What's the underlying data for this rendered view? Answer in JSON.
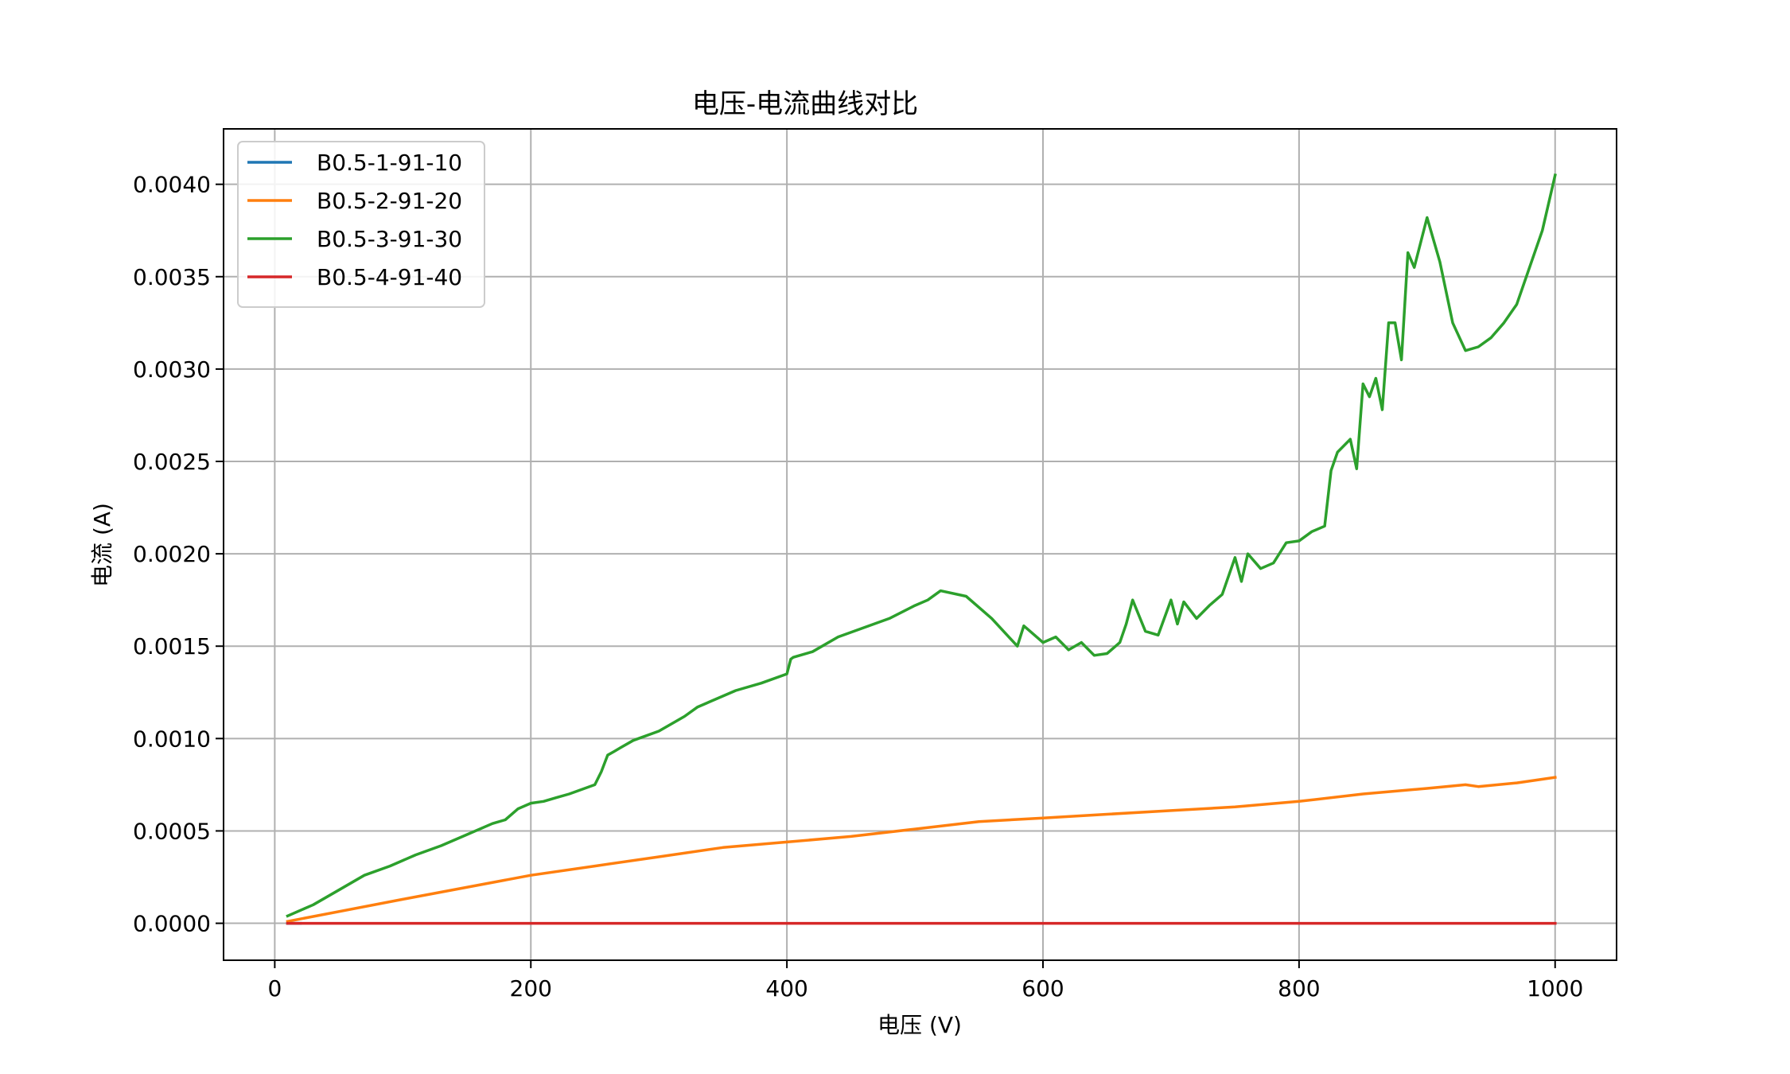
{
  "chart_data": {
    "type": "line",
    "title": "电压-电流曲线对比",
    "xlabel": "电压 (V)",
    "ylabel": "电流 (A)",
    "xlim": [
      -40,
      1048
    ],
    "ylim": [
      -0.0002,
      0.0043
    ],
    "xticks": [
      0,
      200,
      400,
      600,
      800,
      1000
    ],
    "xtick_labels": [
      "0",
      "200",
      "400",
      "600",
      "800",
      "1000"
    ],
    "yticks": [
      0,
      0.0005,
      0.001,
      0.0015,
      0.002,
      0.0025,
      0.003,
      0.0035,
      0.004
    ],
    "ytick_labels": [
      "0.0000",
      "0.0005",
      "0.0010",
      "0.0015",
      "0.0020",
      "0.0025",
      "0.0030",
      "0.0035",
      "0.0040"
    ],
    "grid": true,
    "legend_position": "top-left",
    "series": [
      {
        "name": "B0.5-1-91-10",
        "color": "#1f77b4",
        "x": [
          10,
          20
        ],
        "y": [
          0.0,
          0.0
        ]
      },
      {
        "name": "B0.5-2-91-20",
        "color": "#ff7f0e",
        "x": [
          10,
          100,
          200,
          250,
          300,
          350,
          400,
          450,
          500,
          550,
          600,
          650,
          700,
          750,
          800,
          850,
          900,
          930,
          940,
          970,
          1000
        ],
        "y": [
          1e-05,
          0.00013,
          0.00026,
          0.00031,
          0.00036,
          0.00041,
          0.00044,
          0.00047,
          0.00051,
          0.00055,
          0.00057,
          0.00059,
          0.00061,
          0.00063,
          0.00066,
          0.0007,
          0.00073,
          0.00075,
          0.00074,
          0.00076,
          0.00079
        ]
      },
      {
        "name": "B0.5-3-91-30",
        "color": "#2ca02c",
        "x": [
          10,
          30,
          50,
          70,
          90,
          100,
          110,
          130,
          150,
          170,
          180,
          190,
          200,
          210,
          220,
          230,
          250,
          255,
          260,
          265,
          270,
          280,
          300,
          320,
          330,
          340,
          360,
          380,
          400,
          403,
          405,
          420,
          440,
          460,
          480,
          500,
          510,
          520,
          540,
          560,
          580,
          585,
          590,
          600,
          610,
          620,
          630,
          640,
          650,
          660,
          665,
          670,
          680,
          690,
          700,
          705,
          710,
          720,
          730,
          740,
          750,
          755,
          760,
          770,
          780,
          790,
          800,
          810,
          820,
          825,
          830,
          840,
          845,
          850,
          855,
          860,
          865,
          870,
          875,
          880,
          885,
          890,
          900,
          910,
          920,
          930,
          940,
          950,
          960,
          970,
          980,
          990,
          1000
        ],
        "y": [
          4e-05,
          0.0001,
          0.00018,
          0.00026,
          0.00031,
          0.00034,
          0.00037,
          0.00042,
          0.00048,
          0.00054,
          0.00056,
          0.00062,
          0.00065,
          0.00066,
          0.00068,
          0.0007,
          0.00075,
          0.00082,
          0.00091,
          0.00093,
          0.00095,
          0.00099,
          0.00104,
          0.00112,
          0.00117,
          0.0012,
          0.00126,
          0.0013,
          0.00135,
          0.00143,
          0.00144,
          0.00147,
          0.00155,
          0.0016,
          0.00165,
          0.00172,
          0.00175,
          0.0018,
          0.00177,
          0.00165,
          0.0015,
          0.00161,
          0.00158,
          0.00152,
          0.00155,
          0.00148,
          0.00152,
          0.00145,
          0.00146,
          0.00152,
          0.00162,
          0.00175,
          0.00158,
          0.00156,
          0.00175,
          0.00162,
          0.00174,
          0.00165,
          0.00172,
          0.00178,
          0.00198,
          0.00185,
          0.002,
          0.00192,
          0.00195,
          0.00206,
          0.00207,
          0.00212,
          0.00215,
          0.00245,
          0.00255,
          0.00262,
          0.00246,
          0.00292,
          0.00285,
          0.00295,
          0.00278,
          0.00325,
          0.00325,
          0.00305,
          0.00363,
          0.00355,
          0.00382,
          0.00358,
          0.00325,
          0.0031,
          0.00312,
          0.00317,
          0.00325,
          0.00335,
          0.00355,
          0.00375,
          0.00405
        ]
      },
      {
        "name": "B0.5-4-91-40",
        "color": "#d62728",
        "x": [
          10,
          1000
        ],
        "y": [
          0.0,
          0.0
        ]
      }
    ]
  }
}
